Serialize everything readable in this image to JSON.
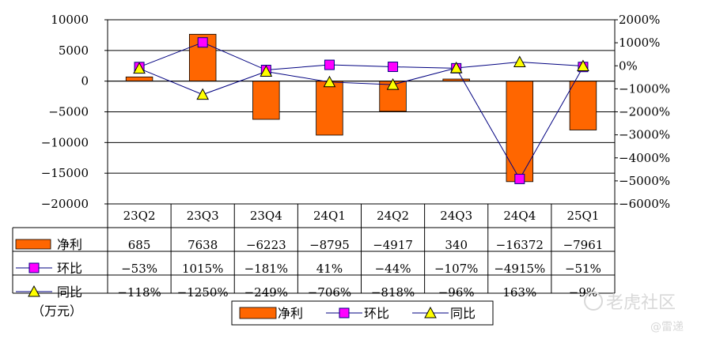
{
  "chart_data": {
    "type": "bar",
    "categories": [
      "23Q2",
      "23Q3",
      "23Q4",
      "24Q1",
      "24Q2",
      "24Q3",
      "24Q4",
      "25Q1"
    ],
    "series": [
      {
        "name": "净利",
        "kind": "bar",
        "axis": "left",
        "values": [
          685,
          7638,
          -6223,
          -8795,
          -4917,
          340,
          -16372,
          -7961
        ],
        "labels": [
          "685",
          "7638",
          "−6223",
          "−8795",
          "−4917",
          "340",
          "−16372",
          "−7961"
        ],
        "color": "#FF6600"
      },
      {
        "name": "环比",
        "kind": "line",
        "axis": "right",
        "marker": "square",
        "values": [
          -53,
          1015,
          -181,
          41,
          -44,
          -107,
          -4915,
          -51
        ],
        "labels": [
          "−53%",
          "1015%",
          "−181%",
          "41%",
          "−44%",
          "−107%",
          "−4915%",
          "−51%"
        ],
        "color": "#FF00FF"
      },
      {
        "name": "同比",
        "kind": "line",
        "axis": "right",
        "marker": "triangle",
        "values": [
          -118,
          -1250,
          -249,
          -706,
          -818,
          -96,
          163,
          -9
        ],
        "labels": [
          "−118%",
          "−1250%",
          "−249%",
          "−706%",
          "−818%",
          "−96%",
          "163%",
          "−9%"
        ],
        "color": "#FFFF00"
      }
    ],
    "ylim": [
      -20000,
      10000
    ],
    "yticks": [
      10000,
      5000,
      0,
      -5000,
      -10000,
      -15000,
      -20000
    ],
    "ytick_labels": [
      "10000",
      "5000",
      "0",
      "−5000",
      "−10000",
      "−15000",
      "−20000"
    ],
    "y2lim": [
      -6000,
      2000
    ],
    "y2ticks": [
      2000,
      1000,
      0,
      -1000,
      -2000,
      -3000,
      -4000,
      -5000,
      -6000
    ],
    "y2tick_labels": [
      "2000%",
      "1000%",
      "0%",
      "−1000%",
      "−2000%",
      "−3000%",
      "−4000%",
      "−5000%",
      "−6000%"
    ],
    "unit": "（万元）",
    "grid": true,
    "legend_position": "bottom"
  },
  "watermark": {
    "brand": "老虎社区",
    "author": "@雷递"
  }
}
